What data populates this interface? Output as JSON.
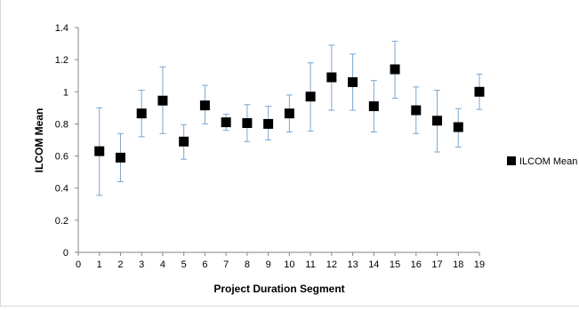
{
  "chart_data": {
    "type": "scatter",
    "title": "",
    "xlabel": "Project Duration Segment",
    "ylabel": "ILCOM Mean",
    "xlim": [
      0,
      19
    ],
    "ylim": [
      0,
      1.4
    ],
    "x_ticks": [
      "0",
      "1",
      "2",
      "3",
      "4",
      "5",
      "6",
      "7",
      "8",
      "9",
      "10",
      "11",
      "12",
      "13",
      "14",
      "15",
      "16",
      "17",
      "18",
      "19"
    ],
    "y_ticks": [
      "0",
      "0.2",
      "0.4",
      "0.6",
      "0.8",
      "1",
      "1.2",
      "1.4"
    ],
    "grid": false,
    "legend": {
      "position": "right",
      "entries": [
        "ILCOM Mean"
      ]
    },
    "series": [
      {
        "name": "ILCOM Mean",
        "color": "#000000",
        "marker": "square",
        "error_bar_color": "#7aa6d1",
        "points": [
          {
            "x": 1,
            "y": 0.63,
            "low": 0.355,
            "high": 0.9
          },
          {
            "x": 2,
            "y": 0.59,
            "low": 0.44,
            "high": 0.74
          },
          {
            "x": 3,
            "y": 0.865,
            "low": 0.72,
            "high": 1.01
          },
          {
            "x": 4,
            "y": 0.945,
            "low": 0.74,
            "high": 1.155
          },
          {
            "x": 5,
            "y": 0.69,
            "low": 0.58,
            "high": 0.795
          },
          {
            "x": 6,
            "y": 0.915,
            "low": 0.8,
            "high": 1.04
          },
          {
            "x": 7,
            "y": 0.81,
            "low": 0.76,
            "high": 0.86
          },
          {
            "x": 8,
            "y": 0.805,
            "low": 0.69,
            "high": 0.92
          },
          {
            "x": 9,
            "y": 0.8,
            "low": 0.7,
            "high": 0.91
          },
          {
            "x": 10,
            "y": 0.865,
            "low": 0.75,
            "high": 0.98
          },
          {
            "x": 11,
            "y": 0.97,
            "low": 0.755,
            "high": 1.18
          },
          {
            "x": 12,
            "y": 1.09,
            "low": 0.885,
            "high": 1.29
          },
          {
            "x": 13,
            "y": 1.06,
            "low": 0.885,
            "high": 1.235
          },
          {
            "x": 14,
            "y": 0.91,
            "low": 0.75,
            "high": 1.07
          },
          {
            "x": 15,
            "y": 1.14,
            "low": 0.96,
            "high": 1.315
          },
          {
            "x": 16,
            "y": 0.885,
            "low": 0.74,
            "high": 1.03
          },
          {
            "x": 17,
            "y": 0.82,
            "low": 0.625,
            "high": 1.01
          },
          {
            "x": 18,
            "y": 0.78,
            "low": 0.655,
            "high": 0.895
          },
          {
            "x": 19,
            "y": 1.0,
            "low": 0.89,
            "high": 1.11
          }
        ]
      }
    ]
  }
}
